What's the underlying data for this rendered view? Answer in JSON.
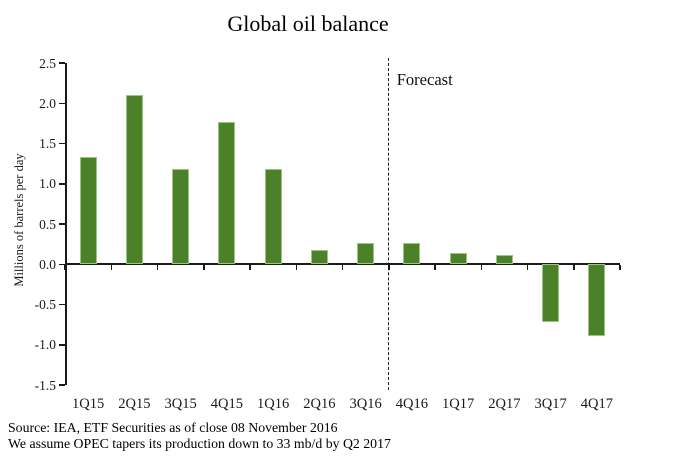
{
  "title": "Global oil balance",
  "chart_data": {
    "type": "bar",
    "title": "Global oil balance",
    "categories": [
      "1Q15",
      "2Q15",
      "3Q15",
      "4Q15",
      "1Q16",
      "2Q16",
      "3Q16",
      "4Q16",
      "1Q17",
      "2Q17",
      "3Q17",
      "4Q17"
    ],
    "values": [
      1.33,
      2.1,
      1.18,
      1.77,
      1.18,
      0.18,
      0.27,
      0.27,
      0.14,
      0.11,
      -0.72,
      -0.89
    ],
    "xlabel": "",
    "ylabel": "Millions of barrels per day",
    "ylim": [
      -1.5,
      2.5
    ],
    "ytick_step": 0.5,
    "grid": false,
    "legend": "none",
    "bar_color": "#4a8129",
    "bar_edge_color": "#9dc47c",
    "forecast": {
      "label": "Forecast",
      "divider_after_category": "3Q16",
      "divider_style": "dashed"
    }
  },
  "footer": {
    "source_line": "Source: IEA, ETF Securities as of close 08 November 2016",
    "assumption_line": "We assume OPEC tapers its production down to 33 mb/d by Q2 2017"
  }
}
